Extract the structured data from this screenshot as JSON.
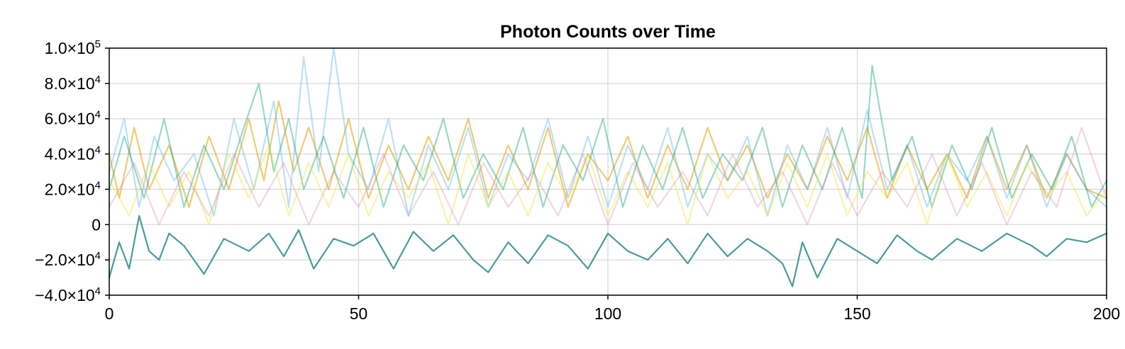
{
  "chart_data": {
    "type": "line",
    "title": "Photon Counts over Time",
    "xlabel": "",
    "ylabel": "",
    "xlim": [
      0,
      200
    ],
    "ylim": [
      -40000,
      100000
    ],
    "x_ticks": [
      0,
      50,
      100,
      150,
      200
    ],
    "x_tick_labels": [
      "0",
      "50",
      "100",
      "150",
      "200"
    ],
    "y_ticks": [
      -40000,
      -20000,
      0,
      20000,
      40000,
      60000,
      80000,
      100000
    ],
    "y_tick_labels": [
      {
        "mantissa": "−4.0×10",
        "exp": "4"
      },
      {
        "mantissa": "−2.0×10",
        "exp": "4"
      },
      {
        "mantissa": "0",
        "exp": ""
      },
      {
        "mantissa": "2.0×10",
        "exp": "4"
      },
      {
        "mantissa": "4.0×10",
        "exp": "4"
      },
      {
        "mantissa": "6.0×10",
        "exp": "4"
      },
      {
        "mantissa": "8.0×10",
        "exp": "4"
      },
      {
        "mantissa": "1.0×10",
        "exp": "5"
      }
    ],
    "grid": true,
    "legend": "none",
    "series_colors": [
      "#56b4e9",
      "#e69f00",
      "#009e73",
      "#f0e442",
      "#cc79a7",
      "#0072b2"
    ],
    "series": [
      {
        "color": "#2a8a8a",
        "opacity": 0.85,
        "x": [
          0,
          2,
          4,
          6,
          8,
          10,
          12,
          15,
          19,
          23,
          28,
          32,
          35,
          38,
          41,
          45,
          49,
          53,
          57,
          61,
          65,
          69,
          73,
          76,
          80,
          84,
          88,
          92,
          96,
          100,
          104,
          108,
          112,
          116,
          120,
          124,
          128,
          132,
          135,
          137,
          139,
          142,
          146,
          150,
          154,
          158,
          162,
          165,
          170,
          175,
          180,
          185,
          188,
          192,
          196,
          200
        ],
        "y": [
          -30000,
          -10000,
          -25000,
          5000,
          -15000,
          -20000,
          -5000,
          -12000,
          -28000,
          -8000,
          -15000,
          -5000,
          -18000,
          -3000,
          -25000,
          -8000,
          -12000,
          -5000,
          -25000,
          -4000,
          -15000,
          -6000,
          -20000,
          -27000,
          -10000,
          -22000,
          -6000,
          -12000,
          -25000,
          -5000,
          -15000,
          -20000,
          -8000,
          -22000,
          -5000,
          -18000,
          -8000,
          -15000,
          -22000,
          -35000,
          -10000,
          -30000,
          -8000,
          -15000,
          -22000,
          -6000,
          -15000,
          -20000,
          -8000,
          -15000,
          -5000,
          -12000,
          -18000,
          -8000,
          -10000,
          -5000
        ]
      },
      {
        "color": "#e69f00",
        "opacity": 0.55,
        "x": [
          0,
          2,
          5,
          8,
          12,
          16,
          20,
          24,
          28,
          31,
          34,
          37,
          40,
          44,
          48,
          52,
          56,
          60,
          64,
          68,
          72,
          76,
          80,
          84,
          88,
          92,
          96,
          100,
          104,
          108,
          112,
          116,
          120,
          124,
          128,
          132,
          136,
          140,
          144,
          148,
          152,
          156,
          160,
          164,
          168,
          172,
          176,
          180,
          184,
          188,
          192,
          196,
          200
        ],
        "y": [
          40000,
          15000,
          55000,
          20000,
          45000,
          10000,
          50000,
          20000,
          60000,
          25000,
          70000,
          30000,
          55000,
          20000,
          60000,
          15000,
          45000,
          20000,
          50000,
          25000,
          60000,
          15000,
          45000,
          20000,
          55000,
          10000,
          40000,
          25000,
          50000,
          15000,
          45000,
          20000,
          55000,
          25000,
          45000,
          15000,
          40000,
          20000,
          50000,
          25000,
          55000,
          15000,
          45000,
          20000,
          40000,
          15000,
          50000,
          20000,
          45000,
          15000,
          40000,
          20000,
          15000
        ]
      },
      {
        "color": "#56b4e9",
        "opacity": 0.4,
        "x": [
          0,
          3,
          6,
          9,
          13,
          17,
          21,
          25,
          29,
          33,
          36,
          39,
          42,
          45,
          48,
          52,
          56,
          60,
          64,
          68,
          72,
          76,
          80,
          84,
          88,
          92,
          96,
          100,
          104,
          108,
          112,
          116,
          120,
          124,
          128,
          132,
          136,
          140,
          144,
          148,
          152,
          156,
          160,
          164,
          168,
          172,
          176,
          180,
          184,
          188,
          192,
          196,
          200
        ],
        "y": [
          30000,
          60000,
          10000,
          50000,
          25000,
          40000,
          5000,
          60000,
          20000,
          70000,
          10000,
          95000,
          30000,
          100000,
          40000,
          20000,
          60000,
          5000,
          45000,
          20000,
          55000,
          10000,
          40000,
          25000,
          60000,
          15000,
          50000,
          10000,
          45000,
          20000,
          55000,
          10000,
          40000,
          25000,
          50000,
          5000,
          45000,
          20000,
          55000,
          15000,
          65000,
          20000,
          45000,
          10000,
          40000,
          25000,
          50000,
          15000,
          45000,
          10000,
          40000,
          20000,
          10000
        ]
      },
      {
        "color": "#009e73",
        "opacity": 0.4,
        "x": [
          0,
          3,
          7,
          11,
          15,
          19,
          23,
          27,
          30,
          33,
          36,
          39,
          43,
          47,
          51,
          55,
          59,
          63,
          67,
          71,
          75,
          79,
          83,
          87,
          91,
          95,
          99,
          103,
          107,
          111,
          115,
          119,
          123,
          127,
          131,
          135,
          139,
          143,
          147,
          151,
          153,
          157,
          161,
          165,
          169,
          173,
          177,
          181,
          185,
          189,
          193,
          197,
          200
        ],
        "y": [
          20000,
          50000,
          15000,
          60000,
          10000,
          45000,
          20000,
          55000,
          80000,
          30000,
          60000,
          20000,
          50000,
          15000,
          55000,
          10000,
          45000,
          25000,
          60000,
          15000,
          40000,
          20000,
          55000,
          10000,
          45000,
          25000,
          60000,
          10000,
          45000,
          20000,
          55000,
          15000,
          40000,
          25000,
          55000,
          10000,
          45000,
          20000,
          55000,
          15000,
          90000,
          25000,
          50000,
          10000,
          45000,
          20000,
          55000,
          15000,
          40000,
          20000,
          50000,
          10000,
          25000
        ]
      },
      {
        "color": "#f0e442",
        "opacity": 0.45,
        "x": [
          0,
          4,
          8,
          12,
          16,
          20,
          24,
          28,
          32,
          36,
          40,
          44,
          48,
          52,
          56,
          60,
          64,
          68,
          72,
          76,
          80,
          84,
          88,
          92,
          96,
          100,
          104,
          108,
          112,
          116,
          120,
          124,
          128,
          132,
          136,
          140,
          144,
          148,
          152,
          156,
          160,
          164,
          168,
          172,
          176,
          180,
          184,
          188,
          192,
          196,
          200
        ],
        "y": [
          25000,
          5000,
          35000,
          10000,
          30000,
          0,
          40000,
          15000,
          45000,
          5000,
          35000,
          10000,
          40000,
          5000,
          30000,
          15000,
          35000,
          0,
          40000,
          10000,
          30000,
          5000,
          35000,
          15000,
          40000,
          5000,
          30000,
          10000,
          35000,
          0,
          40000,
          15000,
          30000,
          5000,
          35000,
          10000,
          40000,
          5000,
          30000,
          15000,
          35000,
          0,
          40000,
          10000,
          30000,
          5000,
          35000,
          15000,
          30000,
          5000,
          20000
        ]
      },
      {
        "color": "#cc79a7",
        "opacity": 0.3,
        "x": [
          0,
          5,
          10,
          15,
          20,
          25,
          30,
          35,
          40,
          45,
          50,
          55,
          60,
          65,
          70,
          75,
          80,
          85,
          90,
          95,
          100,
          105,
          110,
          115,
          120,
          125,
          130,
          135,
          140,
          145,
          150,
          155,
          160,
          165,
          170,
          175,
          180,
          185,
          190,
          195,
          200
        ],
        "y": [
          10000,
          35000,
          0,
          30000,
          5000,
          40000,
          10000,
          35000,
          0,
          30000,
          10000,
          40000,
          5000,
          30000,
          0,
          35000,
          10000,
          30000,
          5000,
          40000,
          0,
          35000,
          10000,
          30000,
          5000,
          40000,
          10000,
          30000,
          0,
          35000,
          5000,
          30000,
          10000,
          40000,
          5000,
          35000,
          0,
          30000,
          10000,
          55000,
          15000
        ]
      }
    ]
  }
}
